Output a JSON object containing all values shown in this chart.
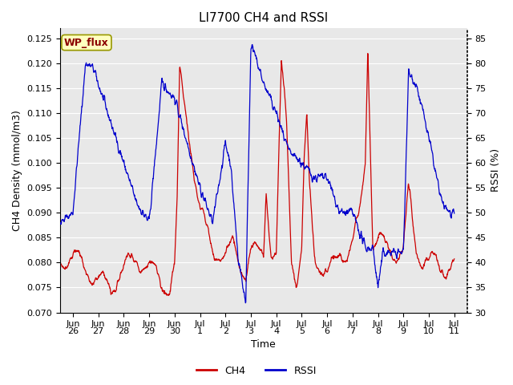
{
  "title": "LI7700 CH4 and RSSI",
  "xlabel": "Time",
  "ylabel_left": "CH4 Density (mmol/m3)",
  "ylabel_right": "RSSI (%)",
  "ylim_left": [
    0.07,
    0.127
  ],
  "ylim_right": [
    30,
    87
  ],
  "yticks_left": [
    0.07,
    0.075,
    0.08,
    0.085,
    0.09,
    0.095,
    0.1,
    0.105,
    0.11,
    0.115,
    0.12,
    0.125
  ],
  "yticks_right": [
    30,
    35,
    40,
    45,
    50,
    55,
    60,
    65,
    70,
    75,
    80,
    85
  ],
  "ch4_color": "#CC0000",
  "rssi_color": "#0000CC",
  "bg_color": "#E8E8E8",
  "annotation_text": "WP_flux",
  "annotation_bg": "#FFFFC0",
  "annotation_border": "#999900",
  "xtick_labels": [
    "Jun\n26",
    "Jun\n27",
    "Jun\n28",
    "Jun\n29",
    "Jun\n30",
    "Jul\n1",
    "Jul\n2",
    "Jul\n3",
    "Jul\n4",
    "Jul\n5",
    "Jul\n6",
    "Jul\n7",
    "Jul\n8",
    "Jul\n9",
    "Jul\n10",
    "Jul\n11"
  ],
  "fontsize_title": 11,
  "fontsize_axis": 9,
  "fontsize_tick": 8,
  "fontsize_legend": 9,
  "linewidth": 0.9
}
